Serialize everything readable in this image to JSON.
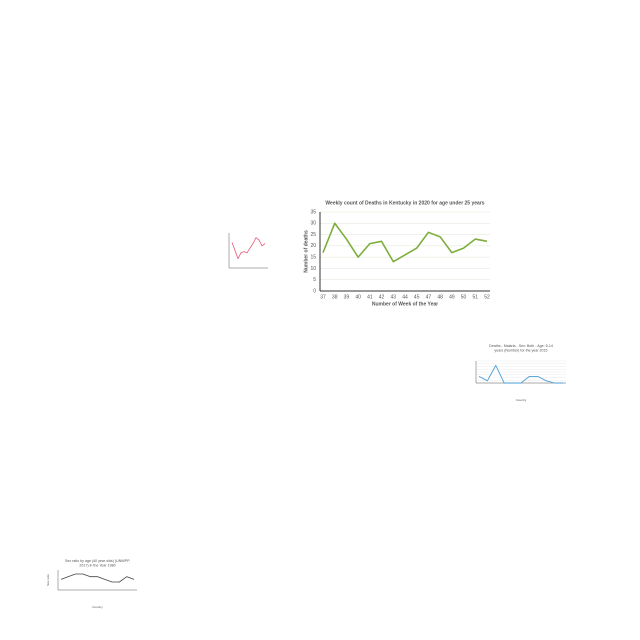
{
  "chart_data": [
    {
      "type": "line",
      "title": "Weekly count of Deaths in Kentucky in 2020 for age under 25 years",
      "x_label": "Number of Week of the Year",
      "y_label": "Number of deaths",
      "categories": [
        "37",
        "38",
        "39",
        "40",
        "41",
        "42",
        "43",
        "44",
        "45",
        "47",
        "48",
        "49",
        "50",
        "51",
        "52"
      ],
      "values": [
        17,
        30,
        23,
        15,
        21,
        22,
        13,
        16,
        19,
        26,
        24,
        17,
        19,
        23,
        22
      ],
      "color": "#7cae3d",
      "ylim": [
        0,
        35
      ],
      "yticks": [
        0,
        5,
        10,
        15,
        20,
        25,
        30,
        35
      ],
      "grid": true
    },
    {
      "type": "line",
      "categories": [
        null,
        null,
        null,
        null,
        null,
        null,
        null,
        null,
        null,
        null,
        null,
        null
      ],
      "values": [
        22,
        15,
        8,
        13,
        14,
        13,
        17,
        21,
        26,
        24,
        19,
        21
      ],
      "color": "#e8587a",
      "ylim": [
        0,
        30
      ]
    },
    {
      "type": "line",
      "title": "Deaths - Malaria - Sex: Both - Age: 5-14 years (Number) for the year 2015",
      "x_label": "Country",
      "categories": [
        null,
        null,
        null,
        null,
        null,
        null,
        null,
        null,
        null,
        null,
        null
      ],
      "values": [
        3,
        1,
        8,
        0,
        0,
        0,
        3,
        3,
        1,
        0,
        0
      ],
      "color": "#4a9fd8",
      "ylim": [
        0,
        10
      ],
      "grid": true
    },
    {
      "type": "line",
      "title": "Sex ratio by age (40 year olds) (UNWPP, 2017) in the Year 1980",
      "x_label": "Country",
      "y_label": "Sex ratio",
      "categories": [
        null,
        null,
        null,
        null,
        null,
        null,
        null,
        null,
        null,
        null,
        null
      ],
      "values": [
        0.98,
        1.0,
        1.02,
        1.02,
        1.0,
        1.0,
        0.98,
        0.96,
        0.96,
        1.0,
        0.98
      ],
      "color": "#444444",
      "ylim": [
        0.9,
        1.05
      ]
    }
  ]
}
